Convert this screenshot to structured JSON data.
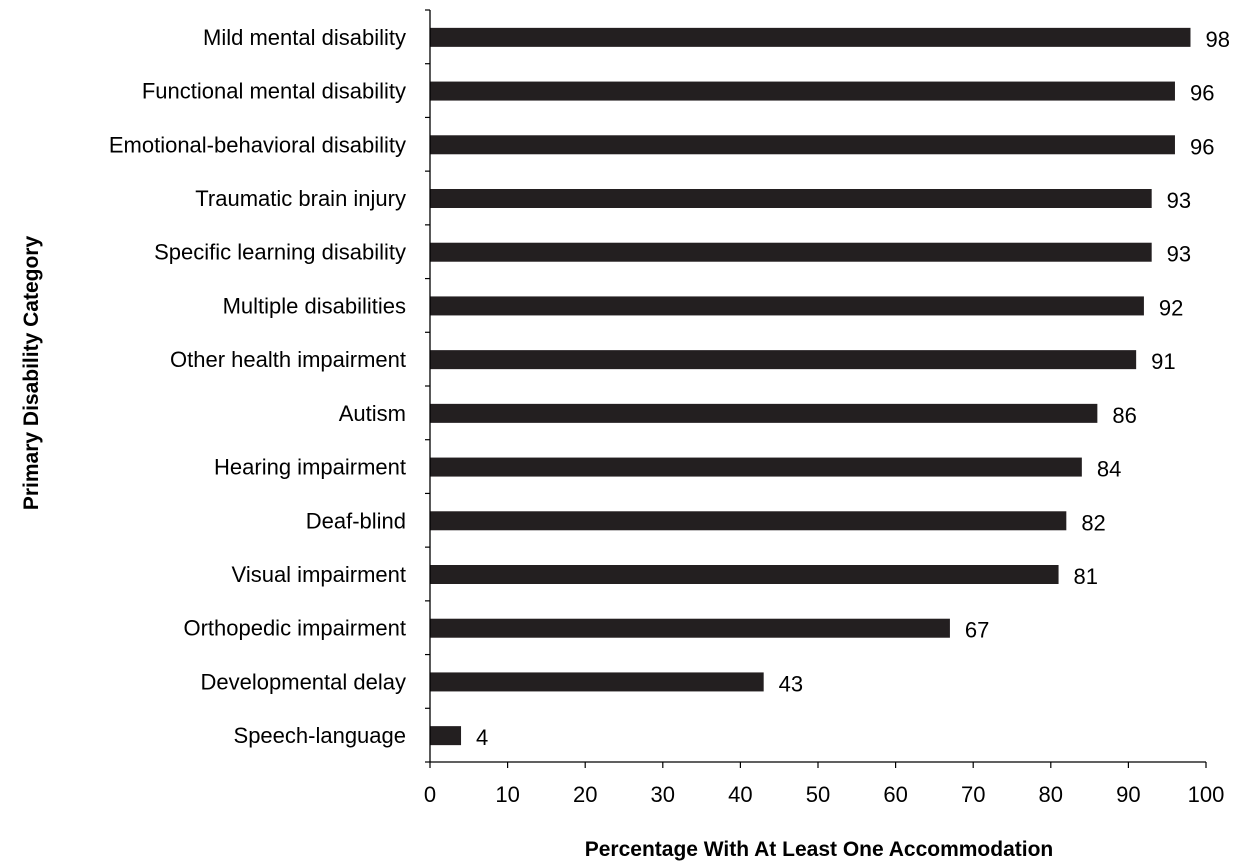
{
  "chart_data": {
    "type": "bar",
    "orientation": "horizontal",
    "title": "",
    "xlabel": "Percentage With At Least One Accommodation",
    "ylabel": "Primary Disability Category",
    "xlim": [
      0,
      100
    ],
    "xticks": [
      0,
      10,
      20,
      30,
      40,
      50,
      60,
      70,
      80,
      90,
      100
    ],
    "grid": false,
    "legend": "none",
    "bar_color": "#231f20",
    "categories": [
      "Mild mental disability",
      "Functional mental disability",
      "Emotional-behavioral disability",
      "Traumatic brain injury",
      "Specific learning disability",
      "Multiple disabilities",
      "Other health impairment",
      "Autism",
      "Hearing impairment",
      "Deaf-blind",
      "Visual impairment",
      "Orthopedic impairment",
      "Developmental delay",
      "Speech-language"
    ],
    "values": [
      98,
      96,
      96,
      93,
      93,
      92,
      91,
      86,
      84,
      82,
      81,
      67,
      43,
      4
    ]
  }
}
